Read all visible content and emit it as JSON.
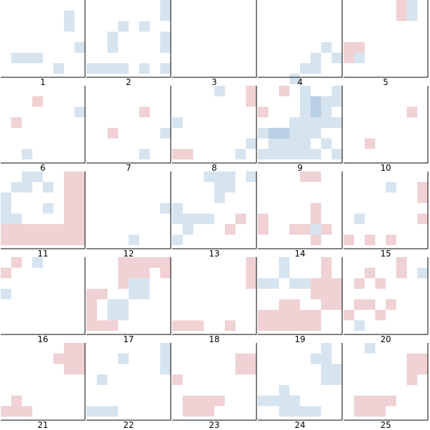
{
  "colors": {
    "blue": "#d6e4f0",
    "blue_dark": "#b9cfe4",
    "red": "#f0d2d4"
  },
  "chart_data": {
    "type": "heatmap",
    "grid_cols": 15,
    "grid_rows": 15,
    "panels": [
      {
        "label": "1",
        "blue": [
          [
            6,
            1
          ],
          [
            6,
            2
          ],
          [
            7,
            4
          ],
          [
            1,
            5
          ],
          [
            2,
            5
          ],
          [
            3,
            5
          ],
          [
            5,
            6
          ]
        ],
        "red": [],
        "blue_dark": []
      },
      {
        "label": "2",
        "blue": [
          [
            7,
            0
          ],
          [
            7,
            1
          ],
          [
            3,
            2
          ],
          [
            5,
            2
          ],
          [
            2,
            3
          ],
          [
            7,
            3
          ],
          [
            2,
            4
          ],
          [
            7,
            4
          ],
          [
            0,
            6
          ],
          [
            1,
            6
          ],
          [
            2,
            6
          ],
          [
            3,
            6
          ],
          [
            5,
            6
          ],
          [
            7,
            6
          ]
        ],
        "red": [],
        "blue_dark": []
      },
      {
        "label": "3",
        "blue": [],
        "red": [],
        "blue_dark": []
      },
      {
        "label": "4",
        "blue": [
          [
            6,
            4
          ],
          [
            5,
            5
          ],
          [
            7,
            5
          ],
          [
            4,
            6
          ],
          [
            5,
            6
          ],
          [
            3,
            7
          ]
        ],
        "red": [],
        "blue_dark": []
      },
      {
        "label": "5",
        "blue": [
          [
            6,
            0
          ],
          [
            0,
            5
          ],
          [
            1,
            5
          ],
          [
            6,
            1
          ]
        ],
        "red": [
          [
            5,
            0
          ],
          [
            5,
            1
          ],
          [
            0,
            4
          ],
          [
            1,
            4
          ],
          [
            0,
            5
          ]
        ],
        "blue_dark": []
      },
      {
        "label": "6",
        "blue": [
          [
            7,
            2
          ],
          [
            2,
            6
          ]
        ],
        "red": [
          [
            3,
            1
          ],
          [
            1,
            3
          ]
        ],
        "blue_dark": []
      },
      {
        "label": "7",
        "blue": [
          [
            7,
            4
          ],
          [
            5,
            6
          ]
        ],
        "red": [
          [
            5,
            2
          ],
          [
            2,
            4
          ]
        ],
        "blue_dark": []
      },
      {
        "label": "8",
        "blue": [
          [
            4,
            0
          ],
          [
            0,
            3
          ],
          [
            7,
            5
          ],
          [
            6,
            6
          ]
        ],
        "red": [
          [
            7,
            0
          ],
          [
            7,
            1
          ],
          [
            0,
            6
          ],
          [
            1,
            6
          ]
        ],
        "blue_dark": []
      },
      {
        "label": "9",
        "blue": [
          [
            4,
            0
          ],
          [
            7,
            0
          ],
          [
            4,
            1
          ],
          [
            5,
            1
          ],
          [
            6,
            1
          ],
          [
            7,
            1
          ],
          [
            4,
            2
          ],
          [
            5,
            2
          ],
          [
            6,
            2
          ],
          [
            3,
            3
          ],
          [
            4,
            3
          ],
          [
            5,
            3
          ],
          [
            6,
            3
          ],
          [
            7,
            3
          ],
          [
            0,
            4
          ],
          [
            3,
            4
          ],
          [
            4,
            4
          ],
          [
            5,
            4
          ],
          [
            1,
            5
          ],
          [
            2,
            5
          ],
          [
            3,
            5
          ],
          [
            4,
            5
          ],
          [
            6,
            5
          ],
          [
            0,
            6
          ],
          [
            1,
            6
          ],
          [
            2,
            6
          ],
          [
            3,
            6
          ],
          [
            4,
            6
          ],
          [
            5,
            6
          ],
          [
            7,
            6
          ]
        ],
        "red": [
          [
            2,
            0
          ],
          [
            0,
            2
          ]
        ],
        "blue_dark": [
          [
            5,
            1
          ],
          [
            5,
            2
          ],
          [
            1,
            4
          ],
          [
            2,
            4
          ]
        ]
      },
      {
        "label": "10",
        "blue": [],
        "red": [
          [
            6,
            2
          ],
          [
            2,
            5
          ]
        ],
        "blue_dark": []
      },
      {
        "label": "11",
        "blue": [
          [
            2,
            0
          ],
          [
            3,
            0
          ],
          [
            1,
            1
          ],
          [
            2,
            1
          ],
          [
            4,
            1
          ],
          [
            0,
            2
          ],
          [
            0,
            3
          ],
          [
            4,
            3
          ],
          [
            0,
            4
          ],
          [
            1,
            4
          ],
          [
            5,
            5
          ]
        ],
        "red": [
          [
            6,
            0
          ],
          [
            7,
            0
          ],
          [
            6,
            1
          ],
          [
            7,
            1
          ],
          [
            6,
            2
          ],
          [
            7,
            2
          ],
          [
            6,
            3
          ],
          [
            7,
            3
          ],
          [
            6,
            4
          ],
          [
            7,
            4
          ],
          [
            0,
            5
          ],
          [
            1,
            5
          ],
          [
            2,
            5
          ],
          [
            3,
            5
          ],
          [
            4,
            5
          ],
          [
            5,
            5
          ],
          [
            6,
            5
          ],
          [
            7,
            5
          ],
          [
            0,
            6
          ],
          [
            1,
            6
          ],
          [
            2,
            6
          ],
          [
            3,
            6
          ],
          [
            4,
            6
          ],
          [
            5,
            6
          ],
          [
            6,
            6
          ],
          [
            7,
            6
          ]
        ],
        "blue_dark": []
      },
      {
        "label": "12",
        "blue": [
          [
            7,
            3
          ],
          [
            4,
            6
          ]
        ],
        "red": [],
        "blue_dark": []
      },
      {
        "label": "13",
        "blue": [
          [
            3,
            0
          ],
          [
            4,
            0
          ],
          [
            5,
            0
          ],
          [
            7,
            0
          ],
          [
            4,
            1
          ],
          [
            5,
            1
          ],
          [
            4,
            2
          ],
          [
            0,
            3
          ],
          [
            0,
            4
          ],
          [
            1,
            4
          ],
          [
            2,
            4
          ],
          [
            3,
            4
          ],
          [
            1,
            5
          ],
          [
            0,
            6
          ]
        ],
        "red": [
          [
            6,
            4
          ],
          [
            5,
            5
          ]
        ],
        "blue_dark": []
      },
      {
        "label": "14",
        "blue": [
          [
            5,
            5
          ]
        ],
        "red": [
          [
            4,
            0
          ],
          [
            5,
            0
          ],
          [
            5,
            3
          ],
          [
            0,
            4
          ],
          [
            5,
            4
          ],
          [
            0,
            5
          ],
          [
            3,
            5
          ],
          [
            4,
            5
          ],
          [
            6,
            5
          ],
          [
            5,
            6
          ]
        ],
        "blue_dark": []
      },
      {
        "label": "15",
        "blue": [
          [
            4,
            1
          ],
          [
            1,
            4
          ]
        ],
        "red": [
          [
            7,
            1
          ],
          [
            7,
            2
          ],
          [
            7,
            4
          ],
          [
            0,
            6
          ],
          [
            2,
            6
          ],
          [
            4,
            6
          ]
        ],
        "blue_dark": []
      },
      {
        "label": "16",
        "blue": [
          [
            3,
            0
          ],
          [
            0,
            3
          ]
        ],
        "red": [
          [
            1,
            0
          ],
          [
            0,
            1
          ]
        ],
        "blue_dark": []
      },
      {
        "label": "17",
        "blue": [
          [
            4,
            2
          ],
          [
            5,
            2
          ],
          [
            4,
            3
          ],
          [
            5,
            3
          ],
          [
            2,
            4
          ],
          [
            3,
            4
          ],
          [
            2,
            5
          ],
          [
            3,
            5
          ]
        ],
        "red": [
          [
            3,
            0
          ],
          [
            4,
            0
          ],
          [
            5,
            0
          ],
          [
            6,
            0
          ],
          [
            7,
            0
          ],
          [
            3,
            1
          ],
          [
            4,
            1
          ],
          [
            5,
            1
          ],
          [
            7,
            1
          ],
          [
            3,
            2
          ],
          [
            0,
            3
          ],
          [
            1,
            3
          ],
          [
            0,
            4
          ],
          [
            0,
            5
          ],
          [
            0,
            6
          ],
          [
            1,
            6
          ],
          [
            2,
            6
          ]
        ],
        "blue_dark": []
      },
      {
        "label": "18",
        "blue": [],
        "red": [
          [
            7,
            0
          ],
          [
            7,
            1
          ],
          [
            7,
            2
          ],
          [
            5,
            6
          ],
          [
            0,
            6
          ],
          [
            1,
            6
          ],
          [
            2,
            6
          ]
        ],
        "blue_dark": []
      },
      {
        "label": "19",
        "blue": [
          [
            2,
            0
          ],
          [
            2,
            1
          ],
          [
            0,
            2
          ],
          [
            1,
            2
          ],
          [
            3,
            2
          ],
          [
            4,
            2
          ]
        ],
        "red": [
          [
            6,
            0
          ],
          [
            6,
            1
          ],
          [
            5,
            2
          ],
          [
            6,
            2
          ],
          [
            7,
            2
          ],
          [
            5,
            3
          ],
          [
            6,
            3
          ],
          [
            7,
            3
          ],
          [
            2,
            4
          ],
          [
            3,
            4
          ],
          [
            6,
            4
          ],
          [
            7,
            4
          ],
          [
            1,
            5
          ],
          [
            2,
            5
          ],
          [
            3,
            5
          ],
          [
            4,
            5
          ],
          [
            5,
            5
          ],
          [
            0,
            5
          ],
          [
            0,
            6
          ],
          [
            1,
            6
          ],
          [
            2,
            6
          ],
          [
            3,
            6
          ],
          [
            4,
            6
          ],
          [
            5,
            6
          ]
        ],
        "blue_dark": []
      },
      {
        "label": "20",
        "blue": [
          [
            7,
            1
          ],
          [
            1,
            6
          ]
        ],
        "red": [
          [
            5,
            0
          ],
          [
            2,
            1
          ],
          [
            5,
            1
          ],
          [
            1,
            2
          ],
          [
            3,
            2
          ],
          [
            1,
            4
          ],
          [
            2,
            4
          ],
          [
            4,
            4
          ],
          [
            3,
            5
          ],
          [
            0,
            5
          ]
        ],
        "blue_dark": []
      },
      {
        "label": "21",
        "blue": [],
        "red": [
          [
            6,
            0
          ],
          [
            7,
            0
          ],
          [
            5,
            1
          ],
          [
            6,
            1
          ],
          [
            7,
            1
          ],
          [
            6,
            2
          ],
          [
            7,
            2
          ],
          [
            1,
            5
          ],
          [
            1,
            6
          ],
          [
            0,
            6
          ],
          [
            2,
            6
          ]
        ],
        "blue_dark": []
      },
      {
        "label": "22",
        "blue": [
          [
            7,
            0
          ],
          [
            3,
            1
          ],
          [
            7,
            1
          ],
          [
            7,
            2
          ],
          [
            1,
            3
          ],
          [
            0,
            6
          ],
          [
            1,
            6
          ],
          [
            2,
            6
          ]
        ],
        "red": [],
        "blue_dark": []
      },
      {
        "label": "23",
        "blue": [],
        "red": [
          [
            6,
            1
          ],
          [
            7,
            1
          ],
          [
            6,
            2
          ],
          [
            7,
            2
          ],
          [
            0,
            3
          ],
          [
            2,
            5
          ],
          [
            3,
            5
          ],
          [
            4,
            5
          ],
          [
            1,
            5
          ],
          [
            1,
            6
          ],
          [
            2,
            6
          ],
          [
            3,
            6
          ]
        ],
        "blue_dark": []
      },
      {
        "label": "24",
        "blue": [
          [
            6,
            0
          ],
          [
            5,
            1
          ],
          [
            6,
            1
          ],
          [
            6,
            2
          ],
          [
            7,
            2
          ],
          [
            6,
            3
          ],
          [
            7,
            3
          ],
          [
            2,
            4
          ],
          [
            1,
            5
          ],
          [
            2,
            5
          ],
          [
            3,
            5
          ],
          [
            0,
            5
          ],
          [
            2,
            6
          ],
          [
            3,
            6
          ],
          [
            4,
            6
          ],
          [
            5,
            6
          ]
        ],
        "red": [],
        "blue_dark": []
      },
      {
        "label": "25",
        "blue": [
          [
            2,
            0
          ],
          [
            6,
            1
          ]
        ],
        "red": [
          [
            6,
            1
          ],
          [
            7,
            1
          ],
          [
            6,
            2
          ],
          [
            7,
            2
          ],
          [
            6,
            3
          ],
          [
            2,
            5
          ],
          [
            3,
            5
          ],
          [
            4,
            5
          ],
          [
            1,
            5
          ],
          [
            1,
            6
          ],
          [
            2,
            6
          ],
          [
            3,
            6
          ]
        ],
        "blue_dark": []
      }
    ]
  }
}
